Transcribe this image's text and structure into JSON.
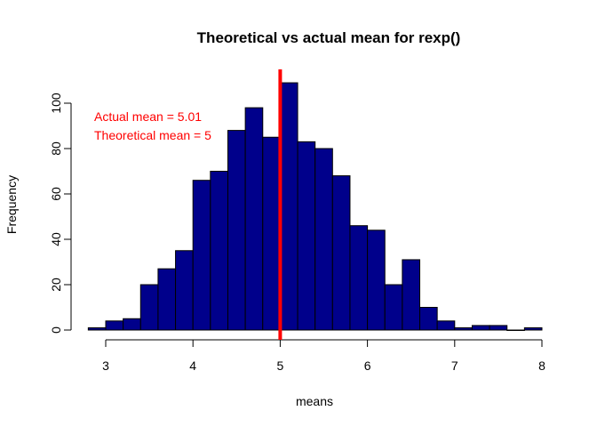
{
  "chart_data": {
    "type": "bar",
    "title": "Theoretical vs actual mean for rexp()",
    "xlabel": "means",
    "ylabel": "Frequency",
    "bin_width": 0.2,
    "bins_start": [
      2.8,
      3.0,
      3.2,
      3.4,
      3.6,
      3.8,
      4.0,
      4.2,
      4.4,
      4.6,
      4.8,
      5.0,
      5.2,
      5.4,
      5.6,
      5.8,
      6.0,
      6.2,
      6.4,
      6.6,
      6.8,
      7.0,
      7.2,
      7.4,
      7.6,
      7.8
    ],
    "values": [
      1,
      4,
      5,
      20,
      27,
      35,
      66,
      70,
      88,
      98,
      85,
      109,
      83,
      80,
      68,
      46,
      44,
      20,
      31,
      10,
      4,
      1,
      2,
      2,
      0,
      1
    ],
    "xlim": [
      2.8,
      8.0
    ],
    "ylim": [
      0,
      110
    ],
    "x_ticks": [
      "3",
      "4",
      "5",
      "6",
      "7",
      "8"
    ],
    "y_ticks": [
      "0",
      "20",
      "40",
      "60",
      "80",
      "100"
    ],
    "bar_color": "#00008B",
    "grid": false,
    "vline": {
      "x": 5.0,
      "color": "#FF0000"
    },
    "annotations": [
      "Actual mean =  5.01",
      "Theoretical mean = 5"
    ],
    "annotation_color": "#FF0000"
  }
}
